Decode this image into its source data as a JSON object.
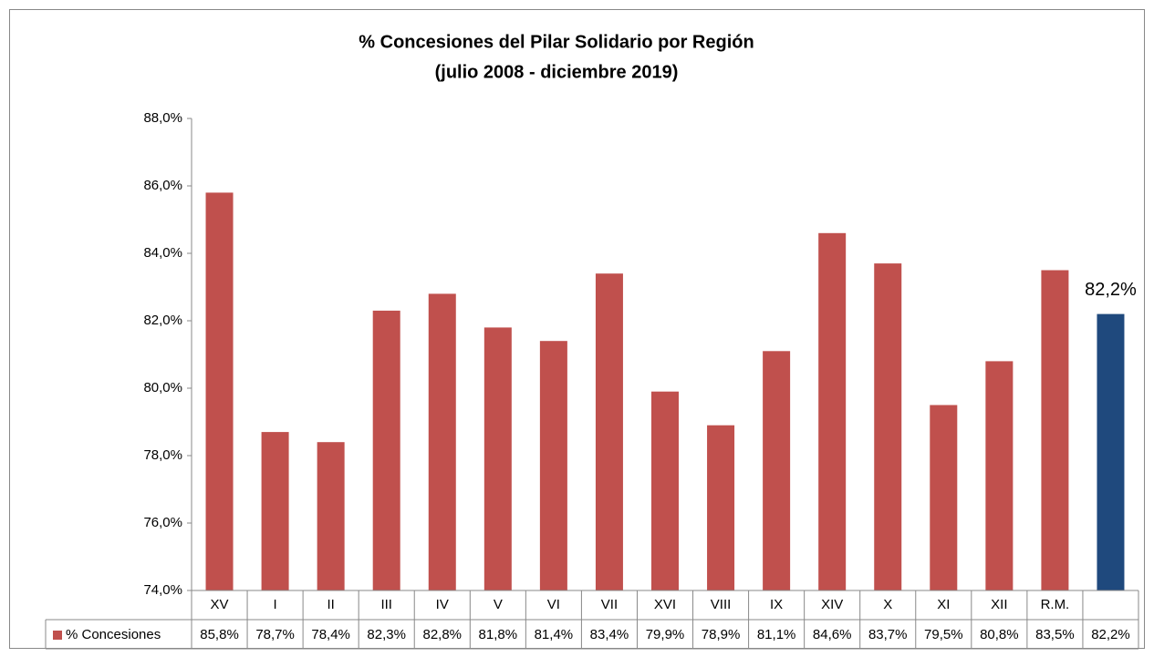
{
  "chart_data": {
    "type": "bar",
    "title": "% Concesiones del Pilar Solidario por Región",
    "subtitle": "(julio 2008  - diciembre 2019)",
    "categories": [
      "XV",
      "I",
      "II",
      "III",
      "IV",
      "V",
      "VI",
      "VII",
      "XVI",
      "VIII",
      "IX",
      "XIV",
      "X",
      "XI",
      "XII",
      "R.M.",
      null
    ],
    "series": [
      {
        "name": "% Concesiones",
        "color": "#c0504d",
        "values": [
          85.8,
          78.7,
          78.4,
          82.3,
          82.8,
          81.8,
          81.4,
          83.4,
          79.9,
          78.9,
          81.1,
          84.6,
          83.7,
          79.5,
          80.8,
          83.5,
          82.2
        ],
        "value_labels": [
          "85,8%",
          "78,7%",
          "78,4%",
          "82,3%",
          "82,8%",
          "81,8%",
          "81,4%",
          "83,4%",
          "79,9%",
          "78,9%",
          "81,1%",
          "84,6%",
          "83,7%",
          "79,5%",
          "80,8%",
          "83,5%",
          "82,2%"
        ],
        "bar_colors": [
          "#c0504d",
          "#c0504d",
          "#c0504d",
          "#c0504d",
          "#c0504d",
          "#c0504d",
          "#c0504d",
          "#c0504d",
          "#c0504d",
          "#c0504d",
          "#c0504d",
          "#c0504d",
          "#c0504d",
          "#c0504d",
          "#c0504d",
          "#c0504d",
          "#1f497d"
        ]
      }
    ],
    "ylim": [
      74,
      88
    ],
    "yticks": [
      {
        "value": 74,
        "label": "74,0%"
      },
      {
        "value": 76,
        "label": "76,0%"
      },
      {
        "value": 78,
        "label": "78,0%"
      },
      {
        "value": 80,
        "label": "80,0%"
      },
      {
        "value": 82,
        "label": "82,0%"
      },
      {
        "value": 84,
        "label": "84,0%"
      },
      {
        "value": 86,
        "label": "86,0%"
      },
      {
        "value": 88,
        "label": "88,0%"
      }
    ],
    "data_table": true
  }
}
